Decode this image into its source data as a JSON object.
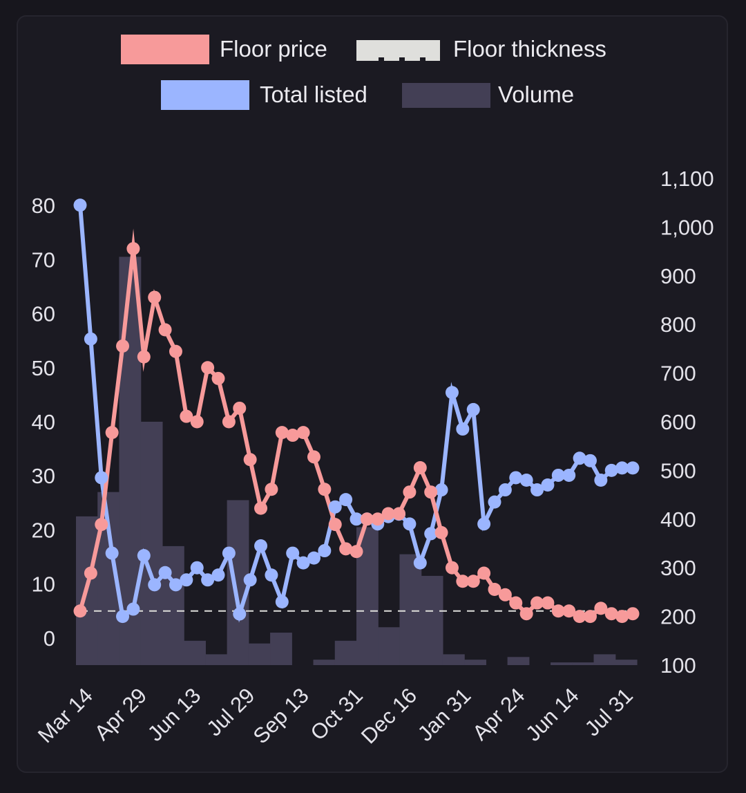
{
  "chart_data": {
    "type": "combo",
    "legend": {
      "placement": "top",
      "entries": [
        {
          "label": "Floor price",
          "color": "#f79a9a",
          "style": "solid"
        },
        {
          "label": "Floor thickness",
          "color": "#dfdfdc",
          "style": "dashed"
        },
        {
          "label": "Total listed",
          "color": "#9bb5ff",
          "style": "solid"
        },
        {
          "label": "Volume",
          "color": "#433f55",
          "style": "bar"
        }
      ]
    },
    "x_tick_labels": [
      "Mar 14",
      "Apr 29",
      "Jun 13",
      "Jul 29",
      "Sep 13",
      "Oct 31",
      "Dec 16",
      "Jan 31",
      "Apr 24",
      "Jun 14",
      "Jul 31"
    ],
    "y_left": {
      "ticks": [
        "0",
        "10",
        "20",
        "30",
        "40",
        "50",
        "60",
        "70",
        "80"
      ],
      "range": [
        -5,
        85
      ]
    },
    "y_right": {
      "ticks": [
        "100",
        "200",
        "300",
        "400",
        "500",
        "600",
        "700",
        "800",
        "900",
        "1,000",
        "1,100"
      ],
      "range": [
        100,
        1100
      ]
    },
    "grid": false,
    "series": [
      {
        "name": "Floor price",
        "axis": "left",
        "color": "#f79a9a",
        "values": [
          5,
          12,
          21,
          38,
          54,
          72,
          52,
          63,
          57,
          53,
          41,
          40,
          50,
          48,
          40,
          42.5,
          33,
          24,
          27.5,
          38,
          37.5,
          38,
          33.5,
          27.5,
          21,
          16.5,
          16,
          22,
          22,
          23,
          23,
          27,
          31.5,
          27,
          19.5,
          13,
          10.5,
          10.5,
          12,
          9,
          8,
          6.5,
          4.5,
          6.5,
          6.5,
          5,
          5,
          4,
          4,
          5.5,
          4.5,
          4,
          4.5
        ]
      },
      {
        "name": "Total listed",
        "axis": "right",
        "color": "#9bb5ff",
        "values": [
          1045,
          770,
          485,
          330,
          200,
          215,
          325,
          265,
          290,
          265,
          275,
          300,
          275,
          285,
          330,
          205,
          275,
          345,
          285,
          230,
          330,
          310,
          320,
          335,
          425,
          440,
          400,
          400,
          390,
          405,
          410,
          390,
          310,
          370,
          460,
          660,
          585,
          625,
          390,
          435,
          460,
          485,
          480,
          460,
          470,
          490,
          490,
          525,
          520,
          480,
          500,
          505,
          505
        ]
      },
      {
        "name": "Floor thickness",
        "axis": "left",
        "color": "#dfdfdc",
        "values": [
          5,
          5,
          5,
          5,
          5,
          5,
          5,
          5,
          5,
          5,
          5,
          5,
          5,
          5,
          5,
          5,
          5,
          5,
          5,
          5,
          5,
          5,
          5,
          5,
          5,
          5,
          5,
          5,
          5,
          5,
          5,
          5,
          5,
          5,
          5,
          5,
          5,
          5,
          5,
          5,
          5,
          5,
          5,
          5,
          5,
          5,
          5,
          5,
          5,
          5,
          5,
          5,
          5
        ]
      },
      {
        "name": "Volume",
        "axis": "left",
        "color": "#433f55",
        "type": "bar",
        "values": [
          27.5,
          32,
          75.5,
          45,
          22,
          4.5,
          2,
          30.5,
          4,
          6,
          0,
          1,
          4.5,
          25.5,
          7,
          20.5,
          16.5,
          2,
          1,
          0,
          1.5,
          0,
          0.5,
          0.5,
          2,
          1
        ]
      }
    ]
  }
}
